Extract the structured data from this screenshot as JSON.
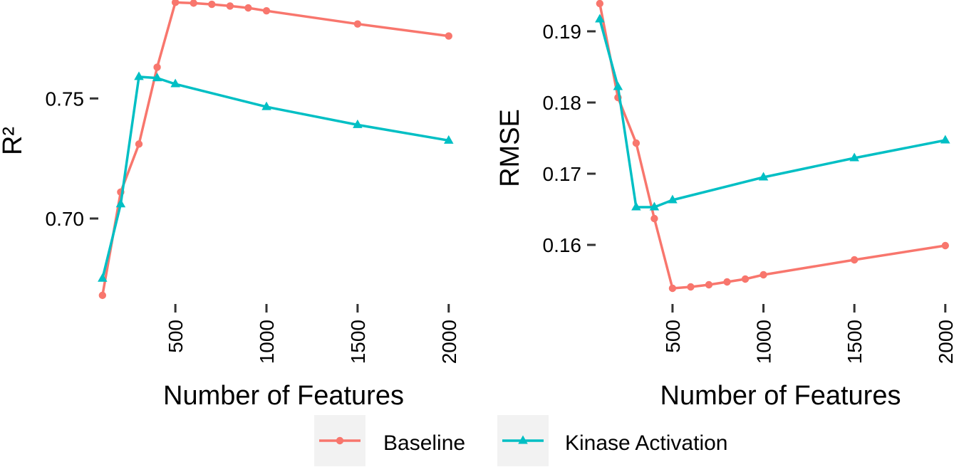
{
  "chart_data": [
    {
      "type": "line",
      "xlabel": "Number of Features",
      "ylabel": "R²",
      "xlim": [
        85,
        2040
      ],
      "ylim": [
        0.665,
        0.791
      ],
      "xticks": [
        500,
        1000,
        1500,
        2000
      ],
      "yticks": [
        0.7,
        0.75
      ],
      "ytick_labels": [
        "0.70",
        "0.75"
      ],
      "grid": false,
      "series": [
        {
          "name": "Baseline",
          "color": "#F8766D",
          "marker": "circle",
          "points": [
            [
              100,
              0.668
            ],
            [
              200,
              0.711
            ],
            [
              300,
              0.731
            ],
            [
              400,
              0.763
            ],
            [
              500,
              0.79
            ],
            [
              600,
              0.7897
            ],
            [
              700,
              0.7892
            ],
            [
              800,
              0.7885
            ],
            [
              900,
              0.7877
            ],
            [
              1000,
              0.7865
            ],
            [
              1500,
              0.781
            ],
            [
              2000,
              0.776
            ]
          ]
        },
        {
          "name": "Kinase Activation",
          "color": "#00BFC4",
          "marker": "triangle",
          "points": [
            [
              100,
              0.675
            ],
            [
              200,
              0.706
            ],
            [
              300,
              0.759
            ],
            [
              400,
              0.7585
            ],
            [
              500,
              0.756
            ],
            [
              1000,
              0.7465
            ],
            [
              1500,
              0.739
            ],
            [
              2000,
              0.7325
            ]
          ]
        }
      ]
    },
    {
      "type": "line",
      "xlabel": "Number of Features",
      "ylabel": "RMSE",
      "xlim": [
        85,
        2040
      ],
      "ylim": [
        0.1519,
        0.1944
      ],
      "xticks": [
        500,
        1000,
        1500,
        2000
      ],
      "yticks": [
        0.16,
        0.17,
        0.18,
        0.19
      ],
      "ytick_labels": [
        "0.16",
        "0.17",
        "0.18",
        "0.19"
      ],
      "grid": false,
      "series": [
        {
          "name": "Baseline",
          "color": "#F8766D",
          "marker": "circle",
          "points": [
            [
              100,
              0.1939
            ],
            [
              200,
              0.1807
            ],
            [
              300,
              0.1743
            ],
            [
              400,
              0.1637
            ],
            [
              500,
              0.1539
            ],
            [
              600,
              0.1541
            ],
            [
              700,
              0.1544
            ],
            [
              800,
              0.1548
            ],
            [
              900,
              0.1552
            ],
            [
              1000,
              0.1558
            ],
            [
              1500,
              0.1579
            ],
            [
              2000,
              0.1599
            ]
          ]
        },
        {
          "name": "Kinase Activation",
          "color": "#00BFC4",
          "marker": "triangle",
          "points": [
            [
              100,
              0.1917
            ],
            [
              200,
              0.1822
            ],
            [
              300,
              0.1653
            ],
            [
              400,
              0.1653
            ],
            [
              500,
              0.1663
            ],
            [
              1000,
              0.1695
            ],
            [
              1500,
              0.1722
            ],
            [
              2000,
              0.1747
            ]
          ]
        }
      ]
    }
  ],
  "legend": {
    "position": "bottom",
    "items": [
      {
        "label": "Baseline",
        "color": "#F8766D",
        "marker": "circle"
      },
      {
        "label": "Kinase Activation",
        "color": "#00BFC4",
        "marker": "triangle"
      }
    ]
  }
}
